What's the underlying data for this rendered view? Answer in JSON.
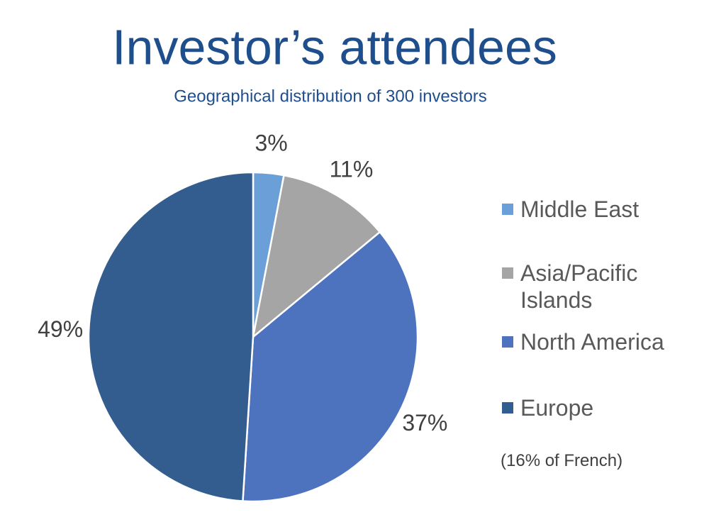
{
  "chart_data": {
    "type": "pie",
    "title": "Investor’s attendees",
    "subtitle": "Geographical distribution of 300 investors",
    "categories": [
      "Middle East",
      "Asia/Pacific Islands",
      "North America",
      "Europe"
    ],
    "values": [
      3,
      11,
      37,
      49
    ],
    "value_labels": [
      "3%",
      "11%",
      "37%",
      "49%"
    ],
    "colors": [
      "#6a9fd8",
      "#a5a5a5",
      "#4e73be",
      "#335d8f"
    ],
    "annotation": "(16% of French)"
  }
}
